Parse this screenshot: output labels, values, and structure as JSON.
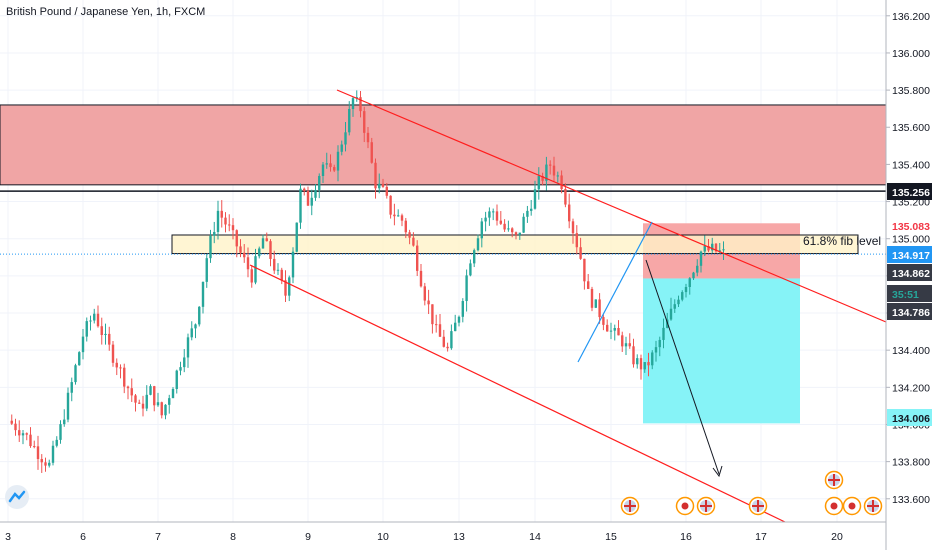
{
  "header": {
    "title": "British Pound / Japanese Yen, 1h, FXCM"
  },
  "colors": {
    "up": "#26a69a",
    "down": "#ef5350",
    "resistance_zone": "#f0a5a5",
    "fib_zone": "#fff2c8",
    "stop_zone": "#f7a7a7",
    "target_zone": "#86f3f7",
    "channel": "#ff1e1e",
    "price_line": "#2196f3",
    "arrow": "#131722"
  },
  "chart_data": {
    "type": "candlestick",
    "symbol": "British Pound / Japanese Yen",
    "interval": "1h",
    "source": "FXCM",
    "ylim": [
      133.475,
      136.285
    ],
    "x_ticks": [
      "3",
      "6",
      "7",
      "8",
      "9",
      "10",
      "13",
      "14",
      "15",
      "16",
      "17",
      "20"
    ],
    "y_ticks": [
      "136.200",
      "136.000",
      "135.800",
      "135.600",
      "135.400",
      "135.200",
      "135.000",
      "134.800",
      "134.600",
      "134.400",
      "134.200",
      "134.000",
      "133.800",
      "133.600"
    ],
    "price_labels": [
      {
        "value": "135.256",
        "style": "black"
      },
      {
        "value": "135.083",
        "style": "red-text"
      },
      {
        "value": "134.917",
        "style": "blue"
      },
      {
        "value": "134.862",
        "style": "dark"
      },
      {
        "value": "35:51",
        "style": "dark-green"
      },
      {
        "value": "134.786",
        "style": "dark"
      },
      {
        "value": "134.006",
        "style": "cyan"
      }
    ],
    "annotations": {
      "fib_label": "61.8% fib level"
    },
    "levels": {
      "resistance_zone": [
        135.29,
        135.72
      ],
      "support_line": 135.256,
      "fib_zone": [
        134.92,
        135.02
      ],
      "last_price": 134.917,
      "stop_zone": [
        134.786,
        135.083
      ],
      "target_zone": [
        134.006,
        134.786
      ]
    },
    "candles_close_path": [
      [
        3,
        134.02
      ],
      [
        3.2,
        133.96
      ],
      [
        3.4,
        133.85
      ],
      [
        3.55,
        133.78
      ],
      [
        3.7,
        133.98
      ],
      [
        3.85,
        134.22
      ],
      [
        4.0,
        134.48
      ],
      [
        4.15,
        134.6
      ],
      [
        4.3,
        134.45
      ],
      [
        4.45,
        134.33
      ],
      [
        4.6,
        134.2
      ],
      [
        4.75,
        134.08
      ],
      [
        4.9,
        134.18
      ],
      [
        5.05,
        134.05
      ],
      [
        5.2,
        134.22
      ],
      [
        5.35,
        134.4
      ],
      [
        5.5,
        134.55
      ],
      [
        5.65,
        134.9
      ],
      [
        5.8,
        135.15
      ],
      [
        5.95,
        135.05
      ],
      [
        6.1,
        134.92
      ],
      [
        6.25,
        134.8
      ],
      [
        6.4,
        135.0
      ],
      [
        6.55,
        134.85
      ],
      [
        6.7,
        134.7
      ],
      [
        6.8,
        134.95
      ],
      [
        6.9,
        135.25
      ],
      [
        7.0,
        135.2
      ],
      [
        7.1,
        135.3
      ],
      [
        7.2,
        135.4
      ],
      [
        7.3,
        135.35
      ],
      [
        7.4,
        135.45
      ],
      [
        7.5,
        135.6
      ],
      [
        7.6,
        135.75
      ],
      [
        7.7,
        135.7
      ],
      [
        7.8,
        135.5
      ],
      [
        7.9,
        135.3
      ],
      [
        8.0,
        135.25
      ],
      [
        8.1,
        135.15
      ],
      [
        8.25,
        135.1
      ],
      [
        8.4,
        134.95
      ],
      [
        8.55,
        134.7
      ],
      [
        8.7,
        134.5
      ],
      [
        8.85,
        134.4
      ],
      [
        9.0,
        134.6
      ],
      [
        9.15,
        134.9
      ],
      [
        9.3,
        135.1
      ],
      [
        9.45,
        135.15
      ],
      [
        9.6,
        135.05
      ],
      [
        9.75,
        135.0
      ],
      [
        9.9,
        135.15
      ],
      [
        10.05,
        135.3
      ],
      [
        10.2,
        135.4
      ],
      [
        10.35,
        135.3
      ],
      [
        10.5,
        135.05
      ],
      [
        10.6,
        134.9
      ],
      [
        10.7,
        134.7
      ],
      [
        10.85,
        134.6
      ],
      [
        11.0,
        134.5
      ],
      [
        11.15,
        134.45
      ],
      [
        11.3,
        134.35
      ],
      [
        11.45,
        134.3
      ],
      [
        11.6,
        134.4
      ],
      [
        11.75,
        134.55
      ],
      [
        11.9,
        134.7
      ],
      [
        12.05,
        134.8
      ],
      [
        12.2,
        134.93
      ],
      [
        12.35,
        134.94
      ],
      [
        12.5,
        134.92
      ]
    ]
  }
}
